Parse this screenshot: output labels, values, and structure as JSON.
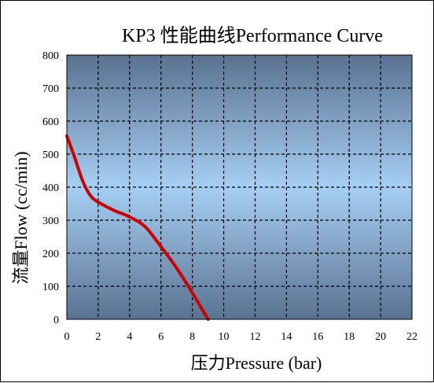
{
  "chart_data": {
    "type": "line",
    "title": "KP3 性能曲线Performance Curve",
    "xlabel": "压力Pressure (bar)",
    "ylabel": "流量Flow (cc/min)",
    "xlim": [
      0,
      22
    ],
    "ylim": [
      0,
      800
    ],
    "xticks": [
      0,
      2,
      4,
      6,
      8,
      10,
      12,
      14,
      16,
      18,
      20,
      22
    ],
    "yticks": [
      0,
      100,
      200,
      300,
      400,
      500,
      600,
      700,
      800
    ],
    "grid": true,
    "series": [
      {
        "color": "#cc0000",
        "x": [
          0,
          0.5,
          1,
          1.5,
          2,
          3,
          4,
          5,
          6,
          7,
          8,
          9
        ],
        "y": [
          555,
          490,
          420,
          375,
          355,
          330,
          310,
          280,
          220,
          155,
          80,
          0
        ]
      }
    ]
  },
  "colors": {
    "plot_top": "#5a7291",
    "plot_mid": "#a6cff3",
    "plot_bottom": "#5a7291",
    "grid": "#000000",
    "line": "#cc0000"
  }
}
